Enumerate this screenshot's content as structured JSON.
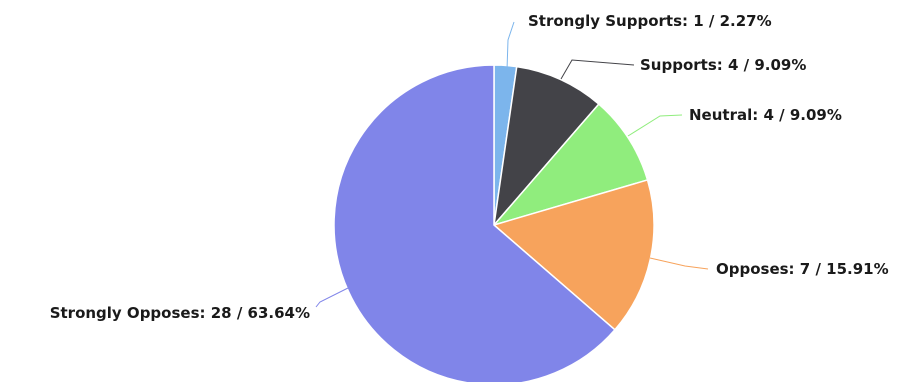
{
  "chart_data": {
    "type": "pie",
    "title": "",
    "legend": "none",
    "slices": [
      {
        "label": "Strongly Supports",
        "value": 1,
        "percent": "2.27%",
        "color": "#7cb5ec",
        "display": "Strongly Supports: 1 / 2.27%"
      },
      {
        "label": "Supports",
        "value": 4,
        "percent": "9.09%",
        "color": "#434348",
        "display": "Supports: 4 / 9.09%"
      },
      {
        "label": "Neutral",
        "value": 4,
        "percent": "9.09%",
        "color": "#90ed7d",
        "display": "Neutral: 4 / 9.09%"
      },
      {
        "label": "Opposes",
        "value": 7,
        "percent": "15.91%",
        "color": "#f7a35c",
        "display": "Opposes: 7 / 15.91%"
      },
      {
        "label": "Strongly Opposes",
        "value": 28,
        "percent": "63.64%",
        "color": "#8085e9",
        "display": "Strongly Opposes: 28 / 63.64%"
      }
    ]
  }
}
